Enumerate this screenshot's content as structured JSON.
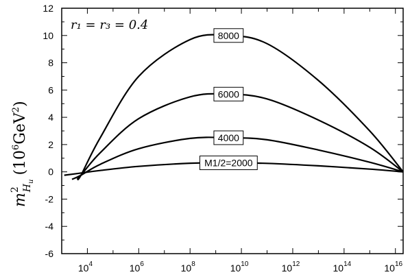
{
  "chart_data": {
    "type": "line",
    "title": "",
    "xlabel": "",
    "ylabel": {
      "main": "m",
      "sup": "2",
      "sub_base": "H",
      "sub_sub": "u",
      "unit_open": "(10",
      "unit_exp": "6",
      "unit_mid": "GeV",
      "unit_exp2": "2",
      "unit_close": ")"
    },
    "x_scale": "log",
    "xlim": [
      1000,
      20000000000000000
    ],
    "ylim": [
      -6,
      12
    ],
    "yticks": [
      "-6",
      "-4",
      "-2",
      "0",
      "2",
      "4",
      "6",
      "8",
      "10",
      "12"
    ],
    "xticks": [
      {
        "base": "10",
        "exp": "4",
        "value": 10000
      },
      {
        "base": "10",
        "exp": "6",
        "value": 1000000
      },
      {
        "base": "10",
        "exp": "8",
        "value": 100000000
      },
      {
        "base": "10",
        "exp": "10",
        "value": 10000000000
      },
      {
        "base": "10",
        "exp": "12",
        "value": 1000000000000
      },
      {
        "base": "10",
        "exp": "14",
        "value": 100000000000000
      },
      {
        "base": "10",
        "exp": "16",
        "value": 10000000000000000
      }
    ],
    "annotation": {
      "lhs": "r₁ = r₃ = 0.4"
    },
    "series": [
      {
        "label": "M1/2=2000",
        "x_log10": [
          3.1,
          3.7,
          4.5,
          6,
          8,
          9.5,
          11,
          13,
          15,
          16.3
        ],
        "y": [
          -0.25,
          -0.1,
          0.1,
          0.4,
          0.63,
          0.66,
          0.62,
          0.44,
          0.2,
          0.0
        ]
      },
      {
        "label": "4000",
        "x_log10": [
          3.4,
          3.75,
          4.5,
          6,
          8,
          9.5,
          11,
          13,
          15,
          16.3
        ],
        "y": [
          -0.55,
          -0.25,
          0.55,
          1.7,
          2.45,
          2.5,
          2.35,
          1.6,
          0.7,
          0.0
        ]
      },
      {
        "label": "6000",
        "x_log10": [
          3.6,
          3.75,
          4.5,
          6,
          8,
          9.5,
          11,
          13,
          15,
          16.3
        ],
        "y": [
          -0.55,
          -0.25,
          1.4,
          3.9,
          5.5,
          5.7,
          5.35,
          3.8,
          1.8,
          0.0
        ]
      },
      {
        "label": "8000",
        "x_log10": [
          3.6,
          3.75,
          4.5,
          6,
          8,
          9.5,
          11,
          13,
          15,
          16.3
        ],
        "y": [
          -0.55,
          -0.25,
          2.5,
          7.0,
          9.7,
          10.0,
          9.4,
          6.7,
          3.0,
          0.0
        ]
      }
    ],
    "grid": false,
    "legend": "inline-labels"
  }
}
